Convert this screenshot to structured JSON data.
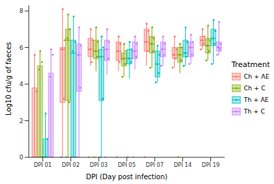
{
  "chart_data": {
    "type": "boxplot",
    "x_label": "DPI (Day post infection)",
    "y_label": "Log10 cfu/g of faeces",
    "legend_title": "Treatment",
    "legend": "right",
    "grid": false,
    "categories": [
      "DPI 01",
      "DPI 02",
      "DPI 03",
      "DPI 05",
      "DPI 07",
      "DPI 14",
      "DPI 19"
    ],
    "ylim": [
      0,
      8.3
    ],
    "yticks": [
      0,
      2,
      4,
      6,
      8
    ],
    "series": [
      {
        "name": "Ch + AE",
        "color": "#F8766D",
        "min": [
          0,
          0,
          5.0,
          4.7,
          5.0,
          4.9,
          5.9
        ],
        "q1": [
          0,
          3.0,
          5.5,
          5.3,
          5.8,
          5.4,
          6.1
        ],
        "median": [
          0,
          5.9,
          5.9,
          5.8,
          6.3,
          5.6,
          6.4
        ],
        "q3": [
          3.8,
          6.0,
          6.5,
          6.3,
          7.0,
          6.0,
          6.6
        ],
        "max": [
          5.6,
          8.1,
          7.0,
          6.6,
          7.3,
          6.6,
          7.0
        ],
        "points": [
          [
            0,
            0,
            0,
            3.6,
            5.6
          ],
          [
            0,
            3.2,
            5.9,
            6.4,
            8.1
          ],
          [
            0,
            5.2,
            5.9,
            6.4,
            7.0
          ],
          [
            0,
            5.2,
            5.8,
            6.2,
            6.6
          ],
          [
            0,
            5.8,
            6.3,
            6.9,
            7.3
          ],
          [
            4.9,
            5.4,
            5.6,
            5.9,
            6.6
          ],
          [
            5.9,
            6.2,
            6.4,
            6.6,
            7.0
          ]
        ]
      },
      {
        "name": "Ch + C",
        "color": "#7CAE00",
        "min": [
          0,
          0,
          4.7,
          4.4,
          4.9,
          4.6,
          5.3
        ],
        "q1": [
          0,
          3.1,
          5.4,
          5.0,
          5.7,
          5.2,
          5.7
        ],
        "median": [
          0,
          6.4,
          5.8,
          5.4,
          6.2,
          5.6,
          6.1
        ],
        "q3": [
          5.0,
          7.0,
          6.4,
          5.7,
          6.6,
          6.0,
          6.5
        ],
        "max": [
          5.8,
          7.8,
          7.1,
          6.2,
          7.1,
          6.2,
          7.2
        ],
        "points": [
          [
            0,
            0,
            4.8,
            5.2,
            5.8
          ],
          [
            0,
            3.0,
            6.5,
            7.0,
            7.8
          ],
          [
            0,
            5.5,
            5.8,
            6.3,
            7.1
          ],
          [
            4.4,
            5.1,
            5.4,
            5.8,
            6.2
          ],
          [
            4.9,
            5.8,
            6.2,
            6.5,
            7.1
          ],
          [
            0,
            5.3,
            5.6,
            6.0,
            6.2
          ],
          [
            5.3,
            5.8,
            6.1,
            6.4,
            7.2
          ]
        ]
      },
      {
        "name": "Th + AE",
        "color": "#00BFC4",
        "min": [
          0,
          0,
          0,
          4.3,
          4.1,
          5.0,
          5.1
        ],
        "q1": [
          0,
          0,
          3.1,
          5.1,
          4.4,
          5.5,
          6.1
        ],
        "median": [
          0,
          5.7,
          5.5,
          5.4,
          5.1,
          5.7,
          6.5
        ],
        "q3": [
          1.0,
          6.4,
          5.9,
          5.9,
          5.8,
          6.4,
          7.0
        ],
        "max": [
          2.4,
          7.7,
          6.6,
          6.3,
          6.1,
          7.1,
          7.5
        ],
        "points": [
          [
            0,
            0,
            0,
            1.0,
            2.4
          ],
          [
            0,
            0,
            5.8,
            6.3,
            7.7
          ],
          [
            0,
            3.2,
            5.5,
            6.0,
            6.6
          ],
          [
            0,
            5.2,
            5.4,
            5.9,
            6.3
          ],
          [
            4.1,
            4.6,
            5.1,
            5.6,
            6.1
          ],
          [
            5.0,
            5.5,
            5.7,
            6.3,
            7.1
          ],
          [
            5.1,
            6.2,
            6.5,
            6.9,
            7.5
          ]
        ]
      },
      {
        "name": "Th + C",
        "color": "#C77CFF",
        "min": [
          0,
          0,
          4.5,
          4.8,
          5.0,
          5.1,
          5.6
        ],
        "q1": [
          0,
          3.6,
          5.3,
          5.4,
          5.5,
          5.5,
          5.8
        ],
        "median": [
          0,
          5.6,
          5.9,
          5.8,
          5.9,
          6.0,
          6.0
        ],
        "q3": [
          4.6,
          6.2,
          6.4,
          6.3,
          6.3,
          6.3,
          6.3
        ],
        "max": [
          5.9,
          7.1,
          7.0,
          6.6,
          6.6,
          6.7,
          7.4
        ],
        "points": [
          [
            0,
            0,
            4.4,
            5.6,
            5.9
          ],
          [
            0,
            3.8,
            5.6,
            6.1,
            7.1
          ],
          [
            0,
            5.4,
            5.9,
            6.3,
            7.0
          ],
          [
            0,
            5.5,
            5.8,
            6.2,
            6.6
          ],
          [
            5.0,
            5.6,
            5.9,
            6.2,
            6.6
          ],
          [
            5.1,
            5.6,
            6.0,
            6.3,
            6.7
          ],
          [
            5.6,
            5.9,
            6.0,
            6.2,
            7.4
          ]
        ]
      }
    ]
  }
}
